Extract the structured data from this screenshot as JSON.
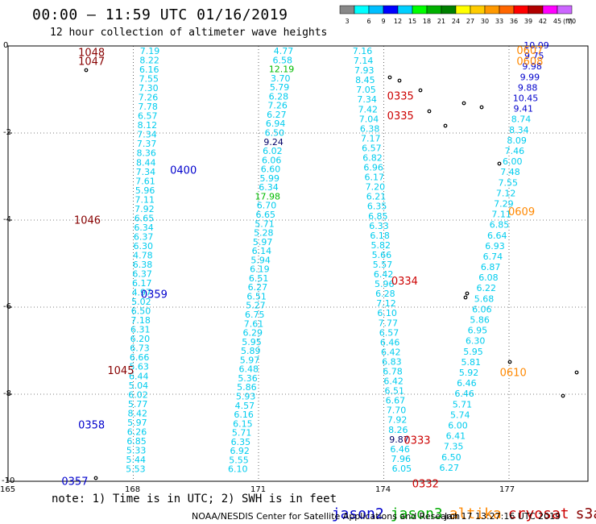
{
  "header": {
    "title": "00:00 – 11:59 UTC 01/16/2019",
    "subtitle": "12 hour collection of altimeter wave heights"
  },
  "colorbar": {
    "ticks": [
      "3",
      "6",
      "9",
      "12",
      "15",
      "18",
      "21",
      "24",
      "27",
      "30",
      "33",
      "36",
      "39",
      "42",
      "45",
      "70"
    ],
    "unit": "(ft)",
    "colors": [
      "#888888",
      "#00ffff",
      "#00bfff",
      "#0000ff",
      "#00cfff",
      "#00ff00",
      "#00b000",
      "#008000",
      "#ffff00",
      "#ffcc00",
      "#ff9900",
      "#ff6600",
      "#ff0000",
      "#b00000",
      "#ff00ff",
      "#cc66ff"
    ]
  },
  "map": {
    "lat_labels": [
      "0",
      "-2",
      "-4",
      "-6",
      "-8",
      "-10"
    ],
    "lon_labels": [
      "165",
      "168",
      "171",
      "174",
      "177"
    ],
    "track_colors": {
      "jason2": "#0000cc",
      "jason3": "#00aa00",
      "altika": "#ff8800",
      "cryosat": "#cc0000",
      "s3a": "#880000",
      "wave": "#00ccee"
    }
  },
  "chart_data": {
    "type": "scatter",
    "title": "12 hour collection of altimeter wave heights",
    "xlabel": "",
    "ylabel": "",
    "xlim": [
      165,
      179
    ],
    "ylim": [
      -10,
      0
    ],
    "units": "ft",
    "track_labels": [
      {
        "text": "1048",
        "track": "s3a",
        "lon": 167.0,
        "lat": -0.05
      },
      {
        "text": "1047",
        "track": "s3a",
        "lon": 167.0,
        "lat": -0.25
      },
      {
        "text": "1046",
        "track": "s3a",
        "lon": 166.9,
        "lat": -3.9
      },
      {
        "text": "1045",
        "track": "s3a",
        "lon": 167.7,
        "lat": -7.35
      },
      {
        "text": "0400",
        "track": "jason2",
        "lon": 169.2,
        "lat": -2.75
      },
      {
        "text": "0359",
        "track": "jason2",
        "lon": 168.5,
        "lat": -5.6
      },
      {
        "text": "0358",
        "track": "jason2",
        "lon": 167.0,
        "lat": -8.6
      },
      {
        "text": "0357",
        "track": "jason2",
        "lon": 166.6,
        "lat": -9.9
      },
      {
        "text": "0335",
        "track": "cryosat",
        "lon": 174.4,
        "lat": -1.05
      },
      {
        "text": "0335",
        "track": "cryosat",
        "lon": 174.4,
        "lat": -1.5
      },
      {
        "text": "0334",
        "track": "cryosat",
        "lon": 174.5,
        "lat": -5.3
      },
      {
        "text": "0333",
        "track": "cryosat",
        "lon": 174.8,
        "lat": -8.95
      },
      {
        "text": "0332",
        "track": "cryosat",
        "lon": 175.0,
        "lat": -9.95
      },
      {
        "text": "0607",
        "track": "altika",
        "lon": 177.5,
        "lat": 0.0
      },
      {
        "text": "0608",
        "track": "altika",
        "lon": 177.5,
        "lat": -0.25
      },
      {
        "text": "0609",
        "track": "altika",
        "lon": 177.3,
        "lat": -3.7
      },
      {
        "text": "0610",
        "track": "altika",
        "lon": 177.1,
        "lat": -7.4
      }
    ],
    "wave_heights_left": [
      "7.19",
      "8.22",
      "6.16",
      "7.55",
      "7.30",
      "7.26",
      "7.78",
      "6.57",
      "8.12",
      "7.34",
      "7.37",
      "8.36",
      "8.44",
      "7.34",
      "7.61",
      "5.96",
      "7.11",
      "7.92",
      "6.65",
      "6.34",
      "6.37",
      "6.30",
      "4.78",
      "6.38",
      "6.37",
      "6.17",
      "4.97",
      "5.02",
      "6.50",
      "7.18",
      "6.31",
      "6.20",
      "6.73",
      "6.66",
      "5.63",
      "6.44",
      "5.04",
      "6.02",
      "5.77",
      "8.42",
      "5.97",
      "6.26",
      "6.85",
      "5.33",
      "5.44",
      "5.53"
    ],
    "wave_heights_mid": [
      "4.77",
      "6.58",
      "12.19",
      "3.70",
      "5.79",
      "6.28",
      "7.26",
      "6.27",
      "6.94",
      "6.50",
      "9.24",
      "6.02",
      "6.06",
      "6.60",
      "5.99",
      "6.34",
      "17.98",
      "6.70",
      "6.65",
      "5.71",
      "5.28",
      "5.97",
      "6.14",
      "5.94",
      "6.19",
      "6.51",
      "6.27",
      "6.51",
      "5.27",
      "6.75",
      "7.61",
      "6.29",
      "5.95",
      "5.89",
      "5.97",
      "6.48",
      "5.36",
      "5.86",
      "5.93",
      "4.57",
      "6.16",
      "6.15",
      "5.71",
      "6.35",
      "6.92",
      "5.55",
      "6.10"
    ],
    "wave_heights_jason3_left": [
      "7.16",
      "7.14",
      "7.93",
      "8.45",
      "7.05",
      "7.34",
      "7.42",
      "7.04",
      "6.38",
      "7.17",
      "6.57",
      "6.82",
      "6.96",
      "6.17",
      "7.20",
      "6.21",
      "6.35",
      "6.85",
      "6.33",
      "6.18",
      "5.82",
      "5.66",
      "5.57",
      "6.42",
      "5.96",
      "6.28",
      "7.12",
      "6.10",
      "7.77",
      "6.57",
      "6.46",
      "6.42",
      "6.83",
      "6.78",
      "6.42",
      "6.51",
      "6.67",
      "7.70",
      "7.92",
      "8.26",
      "9.87",
      "6.46",
      "7.96",
      "6.05"
    ],
    "wave_heights_right": [
      "10.09",
      "9.75",
      "9.98",
      "9.99",
      "9.88",
      "10.45",
      "9.41",
      "8.74",
      "8.34",
      "8.09",
      "7.46",
      "6.00",
      "7.48",
      "7.55",
      "7.12",
      "7.29",
      "7.11",
      "6.85",
      "6.64",
      "6.93",
      "6.74",
      "6.87",
      "6.08",
      "6.22",
      "5.68",
      "6.06",
      "5.86",
      "6.95",
      "6.30",
      "5.95",
      "5.81",
      "5.92",
      "6.46",
      "6.46",
      "5.71",
      "5.74",
      "6.00",
      "6.41",
      "7.35",
      "6.50",
      "6.27"
    ]
  },
  "footer": {
    "note": "note: 1) Time is in UTC; 2) SWH is in feet",
    "legend": [
      {
        "name": "jason2",
        "color": "#0000cc"
      },
      {
        "name": "jason3",
        "color": "#00aa00"
      },
      {
        "name": "altika",
        "color": "#ff8800"
      },
      {
        "name": "cryosat",
        "color": "#cc0000"
      },
      {
        "name": "s3a",
        "color": "#880000"
      }
    ],
    "credit": "NOAA/NESDIS Center for Satellite Applications and Research",
    "timestamp": "Jan 17 13:27:16 UTC 2019"
  }
}
